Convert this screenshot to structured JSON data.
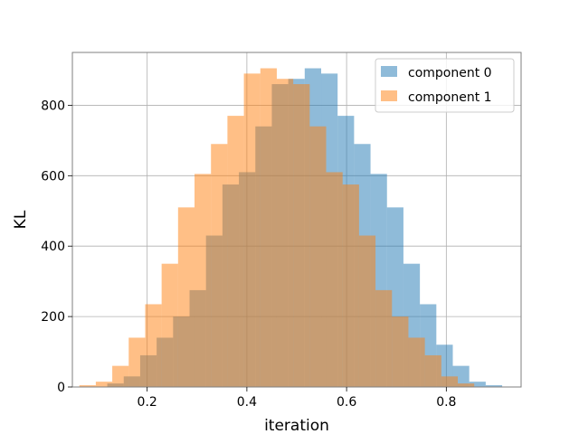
{
  "chart_data": {
    "type": "bar",
    "subtype": "overlapping-histogram",
    "title": "",
    "xlabel": "iteration",
    "ylabel": "KL",
    "xlim": [
      0.05,
      0.95
    ],
    "ylim": [
      0,
      950
    ],
    "xticks": [
      0.2,
      0.4,
      0.6,
      0.8
    ],
    "xtick_labels": [
      "0.2",
      "0.4",
      "0.6",
      "0.8"
    ],
    "yticks": [
      0,
      200,
      400,
      600,
      800
    ],
    "ytick_labels": [
      "0",
      "200",
      "400",
      "600",
      "800"
    ],
    "grid": true,
    "legend_position": "top-right",
    "series": [
      {
        "name": "component 0",
        "color": "#1f77b4",
        "alpha": 0.5,
        "bin_edges": [
          0.12,
          0.153,
          0.186,
          0.219,
          0.252,
          0.285,
          0.318,
          0.351,
          0.384,
          0.417,
          0.45,
          0.483,
          0.516,
          0.549,
          0.582,
          0.615,
          0.648,
          0.681,
          0.714,
          0.747,
          0.78,
          0.813,
          0.846,
          0.879,
          0.912
        ],
        "values": [
          10,
          30,
          90,
          140,
          200,
          275,
          430,
          575,
          610,
          740,
          860,
          875,
          905,
          890,
          770,
          690,
          605,
          510,
          350,
          235,
          120,
          60,
          15,
          5
        ]
      },
      {
        "name": "component 1",
        "color": "#ff7f0e",
        "alpha": 0.5,
        "bin_edges": [
          0.064,
          0.097,
          0.13,
          0.163,
          0.196,
          0.229,
          0.262,
          0.295,
          0.328,
          0.361,
          0.394,
          0.427,
          0.46,
          0.493,
          0.526,
          0.559,
          0.592,
          0.625,
          0.658,
          0.691,
          0.724,
          0.757,
          0.79,
          0.823,
          0.856
        ],
        "values": [
          5,
          15,
          60,
          140,
          235,
          350,
          510,
          605,
          690,
          770,
          890,
          905,
          875,
          860,
          740,
          610,
          575,
          430,
          275,
          200,
          140,
          90,
          30,
          10
        ]
      }
    ]
  }
}
